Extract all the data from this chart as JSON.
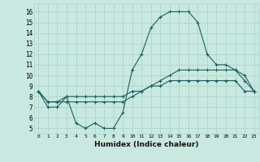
{
  "xlabel": "Humidex (Indice chaleur)",
  "background_color": "#c8e8e0",
  "grid_color": "#b0d8d0",
  "line_color": "#1a6060",
  "x_ticks": [
    0,
    1,
    2,
    3,
    4,
    5,
    6,
    7,
    8,
    9,
    10,
    11,
    12,
    13,
    14,
    15,
    16,
    17,
    18,
    19,
    20,
    21,
    22,
    23
  ],
  "y_ticks": [
    5,
    6,
    7,
    8,
    9,
    10,
    11,
    12,
    13,
    14,
    15,
    16
  ],
  "ylim": [
    4.5,
    16.8
  ],
  "xlim": [
    -0.5,
    23.5
  ],
  "series1": [
    8.5,
    7.0,
    7.0,
    8.0,
    5.5,
    5.0,
    5.5,
    5.0,
    5.0,
    6.5,
    10.5,
    12.0,
    14.5,
    15.5,
    16.0,
    16.0,
    16.0,
    15.0,
    12.0,
    11.0,
    11.0,
    10.5,
    10.0,
    8.5
  ],
  "series2": [
    8.5,
    7.5,
    7.5,
    8.0,
    8.0,
    8.0,
    8.0,
    8.0,
    8.0,
    8.0,
    8.5,
    8.5,
    9.0,
    9.0,
    9.5,
    9.5,
    9.5,
    9.5,
    9.5,
    9.5,
    9.5,
    9.5,
    8.5,
    8.5
  ],
  "series3": [
    8.5,
    7.5,
    7.5,
    7.5,
    7.5,
    7.5,
    7.5,
    7.5,
    7.5,
    7.5,
    8.0,
    8.5,
    9.0,
    9.5,
    10.0,
    10.5,
    10.5,
    10.5,
    10.5,
    10.5,
    10.5,
    10.5,
    9.5,
    8.5
  ]
}
